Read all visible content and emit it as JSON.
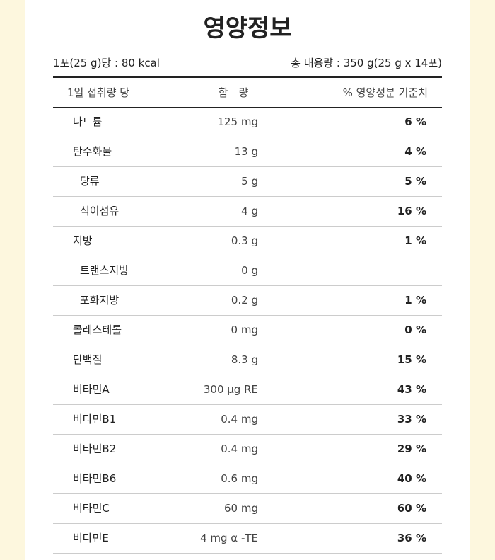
{
  "title": "영양정보",
  "serving": "1포(25 g)당 : 80 kcal",
  "total": "총 내용량 : 350 g(25 g x 14포)",
  "table": {
    "header": [
      "1일 섭취량 당",
      "함　량",
      "% 영양성분 기준치"
    ],
    "rows": [
      {
        "name": "나트륨",
        "amount": "125 mg",
        "percent": "6 %"
      },
      {
        "name": "탄수화물",
        "amount": "13 g",
        "percent": "4 %",
        "sub": [
          {
            "name": "당류",
            "amount": "5 g",
            "percent": "5 %"
          },
          {
            "name": "식이섬유",
            "amount": "4 g",
            "percent": "16 %"
          }
        ]
      },
      {
        "name": "지방",
        "amount": "0.3 g",
        "percent": "1 %",
        "sub": [
          {
            "name": "트랜스지방",
            "amount": "0 g",
            "percent": null
          },
          {
            "name": "포화지방",
            "amount": "0.2 g",
            "percent": "1 %"
          }
        ]
      },
      {
        "name": "콜레스테롤",
        "amount": "0 mg",
        "percent": "0 %"
      },
      {
        "name": "단백질",
        "amount": "8.3 g",
        "percent": "15 %"
      },
      {
        "name": "비타민A",
        "amount": "300 μg RE",
        "percent": "43 %"
      },
      {
        "name": "비타민B1",
        "amount": "0.4 mg",
        "percent": "33 %"
      },
      {
        "name": "비타민B2",
        "amount": "0.4 mg",
        "percent": "29 %"
      },
      {
        "name": "비타민B6",
        "amount": "0.6 mg",
        "percent": "40 %"
      },
      {
        "name": "비타민C",
        "amount": "60 mg",
        "percent": "60 %"
      },
      {
        "name": "비타민E",
        "amount": "4 mg α -TE",
        "percent": "36 %"
      }
    ]
  }
}
